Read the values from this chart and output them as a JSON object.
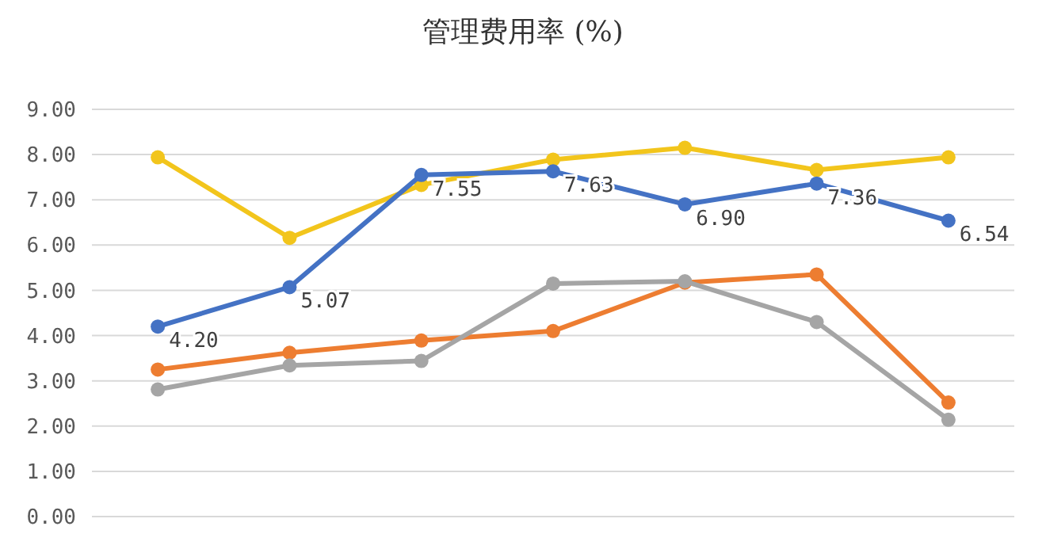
{
  "chart_data": {
    "type": "line",
    "title": "管理费用率 (%)",
    "categories": [
      null,
      null,
      null,
      null,
      null,
      null,
      null
    ],
    "series": [
      {
        "color": "#4472c4",
        "values": [
          4.2,
          5.07,
          7.55,
          7.63,
          6.9,
          7.36,
          6.54
        ],
        "value_labels": [
          "4.20",
          "5.07",
          "7.55",
          "7.63",
          "6.90",
          "7.36",
          "6.54"
        ]
      },
      {
        "color": "#a5a5a5",
        "values": [
          2.81,
          3.34,
          3.44,
          5.15,
          5.2,
          4.3,
          2.14
        ]
      },
      {
        "color": "#ed7d31",
        "values": [
          3.25,
          3.62,
          3.89,
          4.1,
          5.17,
          5.35,
          2.52
        ]
      },
      {
        "color": "#f2c51c",
        "values": [
          7.94,
          6.16,
          7.33,
          7.89,
          8.15,
          7.66,
          7.94
        ]
      }
    ],
    "ylim": [
      0,
      9
    ],
    "yticks": [
      {
        "value": 0,
        "label": "0.00"
      },
      {
        "value": 1,
        "label": "1.00"
      },
      {
        "value": 2,
        "label": "2.00"
      },
      {
        "value": 3,
        "label": "3.00"
      },
      {
        "value": 4,
        "label": "4.00"
      },
      {
        "value": 5,
        "label": "5.00"
      },
      {
        "value": 6,
        "label": "6.00"
      },
      {
        "value": 7,
        "label": "7.00"
      },
      {
        "value": 8,
        "label": "8.00"
      },
      {
        "value": 9,
        "label": "9.00"
      }
    ],
    "grid": "y",
    "marker": "circle",
    "line_style": "solid"
  }
}
